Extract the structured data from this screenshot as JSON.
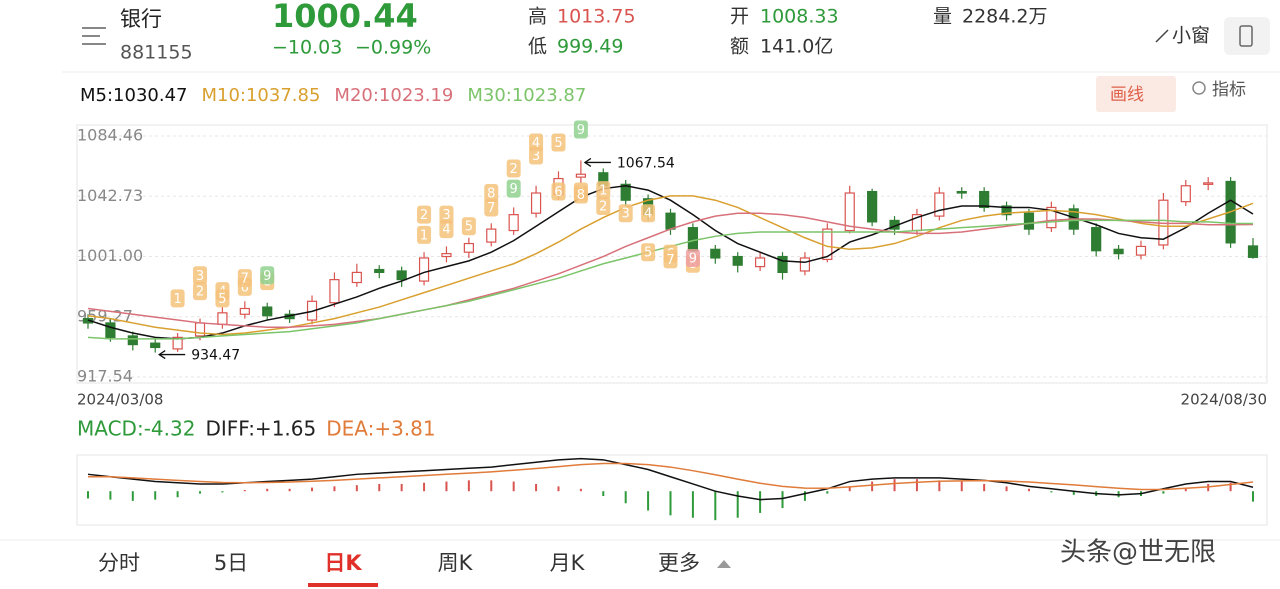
{
  "header": {
    "name": "银行",
    "code": "881155",
    "price": "1000.44",
    "change": "−10.03",
    "pct": "−0.99%",
    "high_label": "高",
    "high": "1013.75",
    "low_label": "低",
    "low": "999.49",
    "open_label": "开",
    "open": "1008.33",
    "amount_label": "额",
    "amount": "141.0亿",
    "volume_label": "量",
    "volume": "2284.2万",
    "window": "小窗",
    "draw": "画线",
    "indicator": "指标"
  },
  "chart_data": [
    {
      "type": "candlestick",
      "x_start": "2024/03/08",
      "x_end": "2024/08/30",
      "ylim": [
        913.4,
        1092.1
      ],
      "yticks": [
        {
          "value": 917.54,
          "label": "917.54"
        },
        {
          "value": 959.27,
          "label": "959.27"
        },
        {
          "value": 1001,
          "label": "1001.00"
        },
        {
          "value": 1042.73,
          "label": "1042.73"
        },
        {
          "value": 1084.46,
          "label": "1084.46"
        }
      ],
      "grid": true,
      "up_color": "#d9534f",
      "down_color": "#2e7d32",
      "open": [
        958,
        955,
        946,
        941,
        937,
        946,
        954,
        961,
        966,
        961,
        957,
        969,
        983,
        992,
        991,
        984,
        1001,
        1004,
        1011,
        1019,
        1031,
        1044,
        1056,
        1059,
        1051,
        1041,
        1031,
        1021,
        1006,
        1001,
        994,
        1001,
        991,
        999,
        1019,
        1046,
        1026,
        1019,
        1029,
        1046,
        1046,
        1036,
        1031,
        1021,
        1034,
        1021,
        1006,
        1002,
        1009,
        1039,
        1051,
        1053,
        1008.33
      ],
      "close": [
        955,
        945,
        940,
        938,
        945,
        955,
        962,
        965,
        960,
        958,
        970,
        985,
        990,
        990,
        985,
        1000,
        1003,
        1010,
        1020,
        1030,
        1045,
        1055,
        1058,
        1050,
        1040,
        1030,
        1020,
        1005,
        1000,
        995,
        1000,
        990,
        1000,
        1020,
        1045,
        1025,
        1020,
        1030,
        1045,
        1045,
        1035,
        1030,
        1020,
        1035,
        1020,
        1005,
        1003,
        1008,
        1040,
        1050,
        1052,
        1010.47,
        1000.44
      ],
      "high": [
        961,
        958,
        949,
        944,
        948,
        958,
        966,
        970,
        969,
        964,
        974,
        990,
        996,
        995,
        994,
        1004,
        1008,
        1014,
        1024,
        1035,
        1050,
        1060,
        1067.54,
        1062,
        1054,
        1044,
        1034,
        1024,
        1009,
        1004,
        1004,
        1004,
        1004,
        1024,
        1050,
        1048,
        1029,
        1034,
        1049,
        1049,
        1049,
        1039,
        1034,
        1039,
        1037,
        1024,
        1009,
        1012,
        1045,
        1054,
        1056,
        1056,
        1013.75
      ],
      "low": [
        951,
        942,
        936,
        934.47,
        935,
        943,
        951,
        958,
        957,
        955,
        954,
        966,
        980,
        986,
        980,
        981,
        997,
        1000,
        1008,
        1016,
        1028,
        1040,
        1052,
        1046,
        1036,
        1026,
        1016,
        1001,
        996,
        990,
        991,
        985,
        988,
        997,
        1017,
        1022,
        1016,
        1016,
        1026,
        1041,
        1032,
        1026,
        1016,
        1018,
        1016,
        1001,
        999,
        999,
        1006,
        1036,
        1047,
        1007,
        999.49
      ],
      "annotations": [
        {
          "index": 22,
          "value": 1067.54,
          "label": "1067.54"
        },
        {
          "index": 3,
          "value": 934.47,
          "label": "934.47"
        }
      ],
      "td_marks": [
        {
          "label": "1",
          "index": 4,
          "value": 972,
          "color": "#f5c27a"
        },
        {
          "label": "2",
          "index": 5,
          "value": 977,
          "color": "#f5c27a"
        },
        {
          "label": "3",
          "index": 5,
          "value": 988,
          "color": "#f5c27a"
        },
        {
          "label": "4",
          "index": 6,
          "value": 977,
          "color": "#f5c27a"
        },
        {
          "label": "5",
          "index": 6,
          "value": 972,
          "color": "#f5c27a"
        },
        {
          "label": "6",
          "index": 7,
          "value": 980,
          "color": "#f5c27a"
        },
        {
          "label": "7",
          "index": 7,
          "value": 986,
          "color": "#f5c27a"
        },
        {
          "label": "8",
          "index": 8,
          "value": 984,
          "color": "#f5c27a"
        },
        {
          "label": "9",
          "index": 8,
          "value": 988,
          "color": "#8fd18f"
        },
        {
          "label": "1",
          "index": 15,
          "value": 1016,
          "color": "#f5c27a"
        },
        {
          "label": "2",
          "index": 15,
          "value": 1030,
          "color": "#f5c27a"
        },
        {
          "label": "3",
          "index": 16,
          "value": 1030,
          "color": "#f5c27a"
        },
        {
          "label": "4",
          "index": 16,
          "value": 1020,
          "color": "#f5c27a"
        },
        {
          "label": "5",
          "index": 17,
          "value": 1022,
          "color": "#f5c27a"
        },
        {
          "label": "7",
          "index": 18,
          "value": 1035,
          "color": "#f5c27a"
        },
        {
          "label": "8",
          "index": 18,
          "value": 1045,
          "color": "#f5c27a"
        },
        {
          "label": "9",
          "index": 19,
          "value": 1048,
          "color": "#8fd18f"
        },
        {
          "label": "2",
          "index": 19,
          "value": 1062,
          "color": "#f5c27a"
        },
        {
          "label": "3",
          "index": 20,
          "value": 1071,
          "color": "#f5c27a"
        },
        {
          "label": "4",
          "index": 20,
          "value": 1080,
          "color": "#f5c27a"
        },
        {
          "label": "5",
          "index": 21,
          "value": 1080,
          "color": "#f5c27a"
        },
        {
          "label": "9",
          "index": 22,
          "value": 1089,
          "color": "#8fd18f"
        },
        {
          "label": "6",
          "index": 21,
          "value": 1046,
          "color": "#f5c27a"
        },
        {
          "label": "7",
          "index": 22,
          "value": 1046,
          "color": "#f5c27a"
        },
        {
          "label": "8",
          "index": 22,
          "value": 1044,
          "color": "#f5c27a"
        },
        {
          "label": "1",
          "index": 23,
          "value": 1047,
          "color": "#f5c27a"
        },
        {
          "label": "2",
          "index": 23,
          "value": 1036,
          "color": "#f5c27a"
        },
        {
          "label": "3",
          "index": 24,
          "value": 1031,
          "color": "#f5c27a"
        },
        {
          "label": "4",
          "index": 25,
          "value": 1031,
          "color": "#f5c27a"
        },
        {
          "label": "5",
          "index": 25,
          "value": 1004,
          "color": "#f5c27a"
        },
        {
          "label": "6",
          "index": 26,
          "value": 1003,
          "color": "#f5c27a"
        },
        {
          "label": "7",
          "index": 26,
          "value": 999,
          "color": "#f5c27a"
        },
        {
          "label": "8",
          "index": 27,
          "value": 996,
          "color": "#f5c27a"
        },
        {
          "label": "9",
          "index": 27,
          "value": 1000,
          "color": "#f0a0a0"
        }
      ],
      "series": [
        {
          "name": "M5:1030.47",
          "color": "#111111",
          "values": [
            957,
            952,
            948,
            945,
            944,
            945,
            948,
            953,
            957,
            960,
            963,
            968,
            973,
            979,
            984,
            990,
            994,
            998,
            1004,
            1012,
            1022,
            1032,
            1042,
            1048,
            1050,
            1047,
            1040,
            1030,
            1019,
            1010,
            1004,
            998,
            997,
            1001,
            1011,
            1016,
            1022,
            1028,
            1033,
            1036,
            1036,
            1035,
            1035,
            1033,
            1028,
            1023,
            1017,
            1014,
            1013,
            1021,
            1031,
            1040,
            1030.47
          ]
        },
        {
          "name": "M10:1037.85",
          "color": "#d9a030",
          "values": [
            960,
            958,
            955,
            952,
            950,
            948,
            947,
            948,
            950,
            952,
            955,
            958,
            962,
            966,
            971,
            976,
            981,
            986,
            991,
            996,
            1003,
            1011,
            1020,
            1028,
            1035,
            1040,
            1043,
            1043,
            1040,
            1035,
            1028,
            1021,
            1014,
            1008,
            1006,
            1007,
            1010,
            1015,
            1021,
            1026,
            1029,
            1031,
            1032,
            1033,
            1032,
            1030,
            1027,
            1024,
            1022,
            1022,
            1027,
            1032,
            1037.85
          ]
        },
        {
          "name": "M20:1023.19",
          "color": "#d8707a",
          "values": [
            965,
            963,
            961,
            959,
            957,
            955,
            954,
            953,
            952,
            952,
            953,
            954,
            956,
            958,
            961,
            964,
            967,
            971,
            975,
            979,
            984,
            989,
            995,
            1001,
            1008,
            1014,
            1020,
            1025,
            1029,
            1031,
            1031,
            1030,
            1028,
            1025,
            1022,
            1020,
            1018,
            1017,
            1017,
            1018,
            1020,
            1022,
            1024,
            1026,
            1027,
            1027,
            1026,
            1025,
            1024,
            1024,
            1023,
            1023,
            1023.19
          ]
        },
        {
          "name": "M30:1023.87",
          "color": "#7cc46a",
          "values": [
            945,
            944,
            944,
            944,
            944,
            945,
            946,
            947,
            948,
            949,
            951,
            953,
            955,
            958,
            961,
            964,
            967,
            970,
            974,
            978,
            982,
            986,
            991,
            996,
            1000,
            1004,
            1008,
            1012,
            1015,
            1017,
            1018,
            1018,
            1018,
            1018,
            1018,
            1018,
            1018,
            1019,
            1020,
            1021,
            1022,
            1023,
            1024,
            1025,
            1026,
            1026,
            1026,
            1026,
            1026,
            1025,
            1025,
            1024,
            1023.87
          ]
        }
      ]
    },
    {
      "type": "macd",
      "ylim": [
        -14,
        15
      ],
      "histogram": {
        "name": "MACD:-4.32",
        "color": "#2e9a3a",
        "up_color": "#d9534f",
        "values": [
          -3,
          -3.5,
          -4,
          -3.5,
          -2.5,
          -1,
          -0.5,
          0.5,
          1,
          1,
          1.5,
          2,
          2.5,
          3,
          3,
          3.5,
          4,
          4.5,
          4.5,
          4,
          3,
          2,
          1,
          -2,
          -5,
          -8,
          -10,
          -11,
          -12,
          -11,
          -9,
          -7,
          -4,
          -1,
          2,
          4,
          5,
          5,
          4.5,
          4,
          3,
          2,
          1,
          -0.5,
          -1.5,
          -2,
          -2.5,
          -2,
          -1,
          1,
          3,
          3.5,
          -4.32
        ]
      },
      "series": [
        {
          "name": "DIFF:+1.65",
          "color": "#111111",
          "values": [
            7,
            6,
            5,
            4,
            3.5,
            3,
            3,
            3.5,
            4,
            4.5,
            5,
            6,
            7,
            7.5,
            8,
            8.5,
            9,
            9.5,
            10,
            11,
            12,
            13,
            13.5,
            13,
            11,
            9,
            6,
            3,
            0,
            -2,
            -3.5,
            -3,
            -1,
            1,
            4,
            5,
            5.5,
            5.5,
            5.5,
            5,
            4.5,
            3.5,
            2,
            1,
            0,
            -1,
            -1.5,
            -1,
            1,
            3,
            4,
            4,
            1.65
          ]
        },
        {
          "name": "DEA:+3.81",
          "color": "#e07b39",
          "values": [
            6,
            6,
            5.5,
            5,
            4.5,
            4,
            3.6,
            3.5,
            3.6,
            3.8,
            4.1,
            4.5,
            5,
            5.5,
            6,
            6.5,
            7,
            7.5,
            8,
            8.7,
            9.4,
            10.2,
            11,
            11.5,
            11.5,
            11,
            10,
            8.5,
            6.8,
            5,
            3.3,
            2,
            1.3,
            1.2,
            1.8,
            2.5,
            3.2,
            3.7,
            4.1,
            4.3,
            4.4,
            4.2,
            3.8,
            3.2,
            2.6,
            1.9,
            1.2,
            0.7,
            0.7,
            1.2,
            1.8,
            2.8,
            3.81
          ]
        }
      ]
    }
  ],
  "tabs": [
    "分时",
    "5日",
    "日K",
    "周K",
    "月K",
    "更多"
  ],
  "active_tab": 2,
  "watermark": "头条@世无限"
}
